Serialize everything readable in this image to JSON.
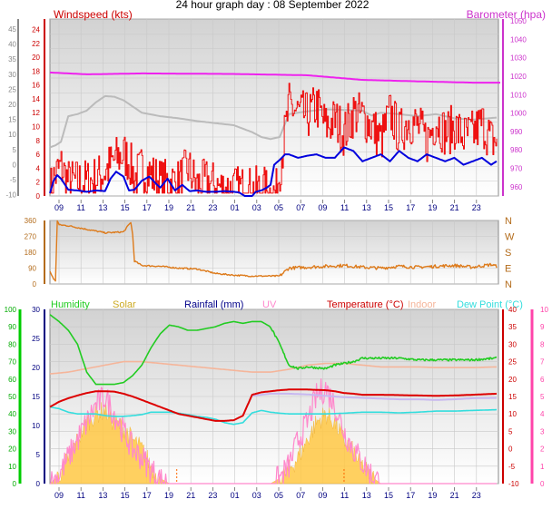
{
  "page_title": "24 hour graph day : 08 September 2022",
  "colors": {
    "wind_avg": "#0000dd",
    "wind_gust": "#ee1111",
    "baro": "#ee22ee",
    "grey_trace": "#bbbbbb",
    "wind_dir": "#dd7a1a",
    "humidity": "#22cc22",
    "solar": "#ffc844",
    "rain": "#000088",
    "uv": "#ff88cc",
    "temperature": "#dd0000",
    "indoor": "#f5b59a",
    "dew_point": "#33dddd",
    "axis_green": "#00aa00",
    "axis_pink": "#ff44aa",
    "axis_grey": "#888888"
  },
  "x_ticks": [
    "09",
    "11",
    "13",
    "15",
    "17",
    "19",
    "21",
    "23",
    "01",
    "03",
    "05",
    "07",
    "09",
    "11",
    "13",
    "15",
    "17",
    "19",
    "21",
    "23"
  ],
  "chart_data": [
    {
      "type": "line",
      "title": "Windspeed (kts)",
      "title_right": "Barometer (hpa)",
      "left_axis_ticks": [
        "24",
        "22",
        "20",
        "18",
        "16",
        "14",
        "12",
        "10",
        "8",
        "6",
        "4",
        "2",
        "0"
      ],
      "left_axis_ticks2": [
        "45",
        "40",
        "35",
        "30",
        "25",
        "20",
        "15",
        "10",
        "5",
        "0",
        "-5",
        "-10"
      ],
      "right_axis_ticks": [
        "1050",
        "1040",
        "1030",
        "1020",
        "1010",
        "1000",
        "990",
        "980",
        "970",
        "960"
      ],
      "ylim_left": [
        0,
        25.5
      ],
      "ylim_right": [
        955,
        1051
      ],
      "series": [
        {
          "key": "baro",
          "color_key": "baro",
          "axis": "right",
          "x": [
            0.0,
            2.0,
            5.0,
            10.0,
            14.0,
            17.0,
            20.0,
            23.0,
            24.5
          ],
          "y": [
            1022,
            1021,
            1021.5,
            1021.2,
            1020.5,
            1018.0,
            1017.2,
            1016.5,
            1016.5
          ]
        },
        {
          "key": "grey",
          "color_key": "grey_trace",
          "axis": "left",
          "x": [
            0.0,
            0.3,
            0.6,
            1.0,
            1.5,
            2.0,
            2.5,
            3.0,
            3.5,
            4.0,
            5.0,
            6.0,
            7.0,
            8.0,
            9.0,
            10.0,
            11.0,
            11.5,
            12.0,
            12.5,
            13.0,
            14.0,
            15.0,
            16.0,
            17.0,
            17.5,
            18.0,
            19.0,
            20.0,
            21.0,
            22.0,
            23.0,
            24.3
          ],
          "y": [
            7.0,
            7.3,
            7.8,
            11.5,
            11.8,
            12.3,
            13.5,
            14.4,
            14.3,
            13.8,
            12.0,
            11.5,
            11.2,
            10.8,
            10.5,
            10.2,
            9.2,
            8.5,
            8.2,
            8.5,
            11.8,
            12.2,
            12.5,
            12.4,
            12.3,
            11.6,
            12.0,
            11.8,
            11.5,
            11.8,
            11.2,
            11.0,
            11.3
          ]
        },
        {
          "key": "gust",
          "color_key": "wind_gust",
          "axis": "left",
          "noise": 1,
          "x": [
            0.0,
            0.2,
            0.4,
            0.6,
            0.8,
            1.0,
            1.5,
            2.0,
            2.5,
            3.0,
            3.5,
            4.0,
            4.3,
            4.6,
            5.0,
            5.5,
            6.0,
            6.5,
            7.0,
            7.5,
            8.0,
            8.5,
            9.0,
            9.5,
            10.0,
            10.5,
            11.0,
            11.5,
            12.0,
            12.3,
            12.6,
            13.0,
            13.5,
            14.0,
            14.5,
            15.0,
            15.5,
            16.0,
            16.5,
            17.0,
            17.5,
            18.0,
            18.5,
            19.0,
            19.5,
            20.0,
            20.5,
            21.0,
            21.5,
            22.0,
            22.5,
            23.0,
            23.5,
            24.0,
            24.3
          ],
          "y": [
            0.6,
            2.5,
            3.5,
            4.2,
            3.0,
            2.0,
            2.0,
            2.0,
            2.5,
            3.5,
            5.2,
            6.0,
            5.0,
            2.5,
            4.0,
            3.0,
            2.0,
            2.0,
            2.0,
            4.0,
            1.5,
            2.0,
            1.5,
            1.0,
            1.0,
            1.0,
            0.8,
            1.0,
            0.4,
            0.5,
            6.0,
            13.0,
            12.0,
            11.5,
            13.0,
            10.0,
            11.0,
            9.0,
            12.0,
            11.5,
            10.0,
            8.0,
            12.0,
            9.0,
            11.0,
            10.0,
            8.0,
            11.0,
            9.0,
            10.0,
            8.5,
            9.0,
            10.5,
            8.0,
            8.0
          ]
        },
        {
          "key": "avg",
          "color_key": "wind_avg",
          "axis": "left",
          "noise": 0,
          "x": [
            0.0,
            0.2,
            0.4,
            0.6,
            1.0,
            1.5,
            2.0,
            2.5,
            3.0,
            3.3,
            3.6,
            4.0,
            4.3,
            4.6,
            5.0,
            5.4,
            5.8,
            6.0,
            6.4,
            6.8,
            7.2,
            7.6,
            8.0,
            8.5,
            9.0,
            9.5,
            10.0,
            10.3,
            10.6,
            11.0,
            11.2,
            11.5,
            11.8,
            12.0,
            12.2,
            12.5,
            12.8,
            13.0,
            13.5,
            14.0,
            14.5,
            15.0,
            15.5,
            16.0,
            16.5,
            17.0,
            17.5,
            18.0,
            18.5,
            19.0,
            19.5,
            20.0,
            20.5,
            21.0,
            21.5,
            22.0,
            22.5,
            23.0,
            23.5,
            24.0,
            24.3
          ],
          "y": [
            0.4,
            2.2,
            3.0,
            2.5,
            0.9,
            0.8,
            0.6,
            0.8,
            0.7,
            2.5,
            3.5,
            2.8,
            0.8,
            0.9,
            2.2,
            2.8,
            1.7,
            1.2,
            2.5,
            0.8,
            1.6,
            0.7,
            0.8,
            0.6,
            0.6,
            0.7,
            0.6,
            0.5,
            0.0,
            0.0,
            0.6,
            0.8,
            1.2,
            1.6,
            4.5,
            5.2,
            6.0,
            6.0,
            5.5,
            5.8,
            6.0,
            5.5,
            5.5,
            7.0,
            6.5,
            5.0,
            5.5,
            6.0,
            5.0,
            6.5,
            5.5,
            5.0,
            6.0,
            5.5,
            5.0,
            5.5,
            4.5,
            5.0,
            5.5,
            4.5,
            5.0
          ]
        }
      ]
    },
    {
      "type": "line",
      "title": "",
      "left_axis_ticks": [
        "360",
        "270",
        "180",
        "90",
        "0"
      ],
      "right_axis_ticks": [
        "N",
        "W",
        "S",
        "E",
        "N"
      ],
      "ylim_left": [
        0,
        360
      ],
      "series": [
        {
          "key": "dir",
          "color_key": "wind_dir",
          "axis": "left",
          "x": [
            0.0,
            0.2,
            0.3,
            0.4,
            0.5,
            1.0,
            2.0,
            3.0,
            4.0,
            4.4,
            4.5,
            4.6,
            5.0,
            6.0,
            7.0,
            8.0,
            9.0,
            10.0,
            11.0,
            12.0,
            12.5,
            13.0,
            14.0,
            15.0,
            16.0,
            17.0,
            18.0,
            19.0,
            20.0,
            21.0,
            22.0,
            23.0,
            24.0,
            24.3
          ],
          "y": [
            70,
            30,
            15,
            360,
            335,
            330,
            310,
            290,
            295,
            350,
            280,
            130,
            105,
            100,
            90,
            85,
            60,
            50,
            45,
            45,
            45,
            90,
            95,
            100,
            105,
            95,
            90,
            100,
            95,
            100,
            105,
            95,
            110,
            100
          ]
        }
      ]
    },
    {
      "type": "line",
      "title": "",
      "legend": [
        "Humidity",
        "Solar",
        "Rainfall (mm)",
        "UV",
        "Temperature (°C)",
        "Indoor",
        "Dew Point (°C)"
      ],
      "left_axis_ticks": [
        "100",
        "90",
        "80",
        "70",
        "60",
        "50",
        "40",
        "30",
        "20",
        "10",
        "0"
      ],
      "left_axis_ticks2": [
        "30",
        "25",
        "20",
        "15",
        "10",
        "5",
        "0"
      ],
      "right_axis_ticks": [
        "40",
        "35",
        "30",
        "25",
        "20",
        "15",
        "10",
        "5",
        "0",
        "-5",
        "-10"
      ],
      "right_axis_ticks2": [
        "10",
        "9",
        "8",
        "7",
        "6",
        "5",
        "4",
        "3",
        "2",
        "1",
        "0"
      ],
      "ylim_temp": [
        -10,
        40
      ],
      "series": [
        {
          "key": "humidity",
          "color_key": "humidity",
          "unit": "%",
          "x": [
            0.0,
            0.5,
            1.0,
            1.5,
            2.0,
            2.5,
            3.0,
            3.5,
            4.0,
            4.5,
            5.0,
            5.5,
            6.0,
            6.5,
            7.0,
            7.5,
            8.0,
            8.5,
            9.0,
            9.5,
            10.0,
            10.5,
            11.0,
            11.5,
            12.0,
            12.5,
            13.0,
            13.5,
            14.0,
            15.0,
            15.5,
            16.0,
            16.5,
            17.0,
            18.0,
            19.0,
            20.0,
            21.0,
            22.0,
            23.0,
            24.3
          ],
          "y": [
            97,
            93,
            88,
            80,
            64,
            57,
            57,
            57,
            58,
            62,
            68,
            78,
            86,
            91,
            90,
            88,
            88,
            89,
            90,
            92,
            93,
            92,
            93,
            93,
            90,
            80,
            68,
            66,
            67,
            66,
            68,
            69,
            70,
            72,
            72,
            72,
            71,
            71,
            71,
            71,
            72
          ]
        },
        {
          "key": "indoor",
          "color_key": "indoor",
          "unit": "C",
          "x": [
            0.0,
            1.0,
            2.0,
            3.0,
            4.0,
            5.0,
            6.0,
            7.0,
            8.0,
            9.0,
            10.0,
            11.0,
            12.0,
            13.0,
            14.0,
            15.0,
            16.0,
            17.0,
            18.0,
            19.0,
            20.0,
            21.0,
            22.0,
            23.0,
            24.3
          ],
          "y": [
            21.5,
            22.0,
            23.0,
            24.0,
            25.0,
            25.0,
            24.5,
            24.0,
            23.5,
            23.0,
            22.5,
            22.0,
            22.0,
            22.8,
            24.0,
            24.5,
            24.5,
            24.0,
            23.5,
            23.5,
            23.5,
            23.3,
            23.3,
            23.3,
            23.5
          ]
        },
        {
          "key": "temperature",
          "color_key": "temperature",
          "unit": "C",
          "x": [
            0.0,
            0.5,
            1.0,
            1.5,
            2.0,
            2.5,
            3.0,
            3.5,
            4.0,
            4.5,
            5.0,
            5.5,
            6.0,
            6.5,
            7.0,
            7.5,
            8.0,
            8.5,
            9.0,
            9.5,
            10.0,
            10.5,
            11.0,
            11.5,
            12.0,
            12.5,
            13.0,
            14.0,
            15.0,
            15.5,
            16.0,
            16.5,
            17.0,
            18.0,
            19.0,
            20.0,
            21.0,
            22.0,
            23.0,
            24.3
          ],
          "y": [
            12.0,
            13.5,
            14.5,
            15.3,
            16.0,
            16.5,
            16.5,
            16.4,
            15.8,
            15.0,
            14.0,
            13.0,
            12.0,
            11.0,
            10.0,
            9.5,
            9.0,
            8.5,
            8.0,
            8.0,
            8.2,
            9.5,
            15.5,
            16.2,
            16.5,
            16.8,
            17.0,
            17.0,
            16.8,
            16.5,
            16.0,
            15.8,
            15.5,
            15.5,
            15.4,
            15.3,
            15.2,
            15.3,
            15.5,
            15.8
          ]
        },
        {
          "key": "feels",
          "color_key": "uv",
          "unit": "C",
          "x": [
            11.0,
            11.5,
            12.0,
            13.0,
            14.0,
            15.0,
            16.0,
            17.0,
            18.0,
            19.0,
            20.0,
            21.0,
            22.0,
            23.0,
            24.3
          ],
          "y": [
            15.2,
            15.5,
            15.8,
            15.8,
            15.6,
            15.2,
            14.8,
            14.6,
            14.4,
            14.2,
            14.2,
            14.0,
            14.2,
            14.5,
            14.6
          ]
        },
        {
          "key": "dew_point",
          "color_key": "dew_point",
          "unit": "C",
          "x": [
            0.0,
            0.5,
            1.0,
            1.5,
            2.0,
            2.5,
            3.0,
            3.5,
            4.0,
            4.5,
            5.0,
            5.5,
            6.0,
            6.5,
            7.0,
            7.5,
            8.0,
            8.5,
            9.0,
            9.5,
            10.0,
            10.5,
            11.0,
            11.5,
            12.0,
            12.5,
            13.0,
            14.0,
            15.0,
            16.0,
            17.0,
            18.0,
            19.0,
            20.0,
            21.0,
            22.0,
            23.0,
            24.3
          ],
          "y": [
            12.0,
            11.5,
            10.5,
            10.0,
            10.0,
            10.0,
            9.5,
            9.3,
            9.3,
            9.5,
            9.8,
            10.5,
            10.5,
            10.5,
            10.2,
            9.8,
            9.3,
            9.0,
            8.5,
            7.5,
            7.0,
            7.5,
            10.3,
            11.0,
            10.5,
            10.2,
            10.0,
            10.0,
            10.0,
            10.2,
            10.5,
            10.5,
            10.3,
            10.5,
            10.8,
            10.8,
            11.0,
            11.2
          ]
        },
        {
          "key": "solar",
          "color_key": "solar",
          "unit": "UV",
          "x": [
            0.0,
            0.5,
            1.0,
            1.5,
            2.0,
            2.5,
            3.0,
            3.5,
            4.0,
            4.5,
            5.0,
            5.5,
            6.0,
            6.5,
            7.0,
            7.5,
            8.0,
            8.5,
            8.9,
            9.5,
            10.0,
            10.5,
            11.0,
            11.5,
            12.0,
            12.5,
            13.0,
            13.5,
            14.0,
            14.5,
            15.0,
            15.5,
            16.0,
            16.5,
            17.0,
            17.5,
            18.0,
            24.3
          ],
          "y": [
            0,
            0.5,
            1.5,
            2.5,
            3.5,
            4.0,
            4.2,
            3.5,
            3.2,
            2.5,
            2.0,
            1.0,
            0.3,
            0,
            0,
            0,
            0,
            0,
            0,
            0,
            0,
            0,
            0,
            0,
            0,
            0.3,
            0.8,
            1.5,
            2.5,
            3.5,
            4.0,
            3.5,
            2.5,
            1.8,
            1.0,
            0.4,
            0,
            0
          ]
        },
        {
          "key": "uv",
          "color_key": "uv",
          "unit": "UV",
          "noise": 1,
          "x": [
            0.0,
            0.5,
            1.0,
            1.5,
            2.0,
            2.5,
            3.0,
            3.5,
            4.0,
            4.5,
            5.0,
            5.5,
            6.0,
            6.5,
            7.0,
            7.5,
            8.0,
            8.5,
            8.9,
            9.5,
            10.0,
            10.5,
            11.0,
            11.5,
            12.0,
            12.5,
            13.0,
            13.5,
            14.0,
            14.5,
            15.0,
            15.5,
            16.0,
            16.5,
            17.0,
            17.5,
            18.0,
            24.3
          ],
          "y": [
            0,
            0.5,
            1.5,
            2.5,
            3.5,
            4.5,
            5.0,
            4.0,
            3.0,
            2.0,
            1.5,
            0.8,
            0.2,
            0,
            0,
            0,
            0,
            0,
            0,
            0,
            0,
            0,
            0,
            0,
            0,
            0.3,
            1.0,
            2.5,
            3.5,
            5.0,
            5.5,
            4.5,
            3.0,
            2.0,
            1.2,
            0.5,
            0,
            0
          ]
        }
      ]
    }
  ]
}
